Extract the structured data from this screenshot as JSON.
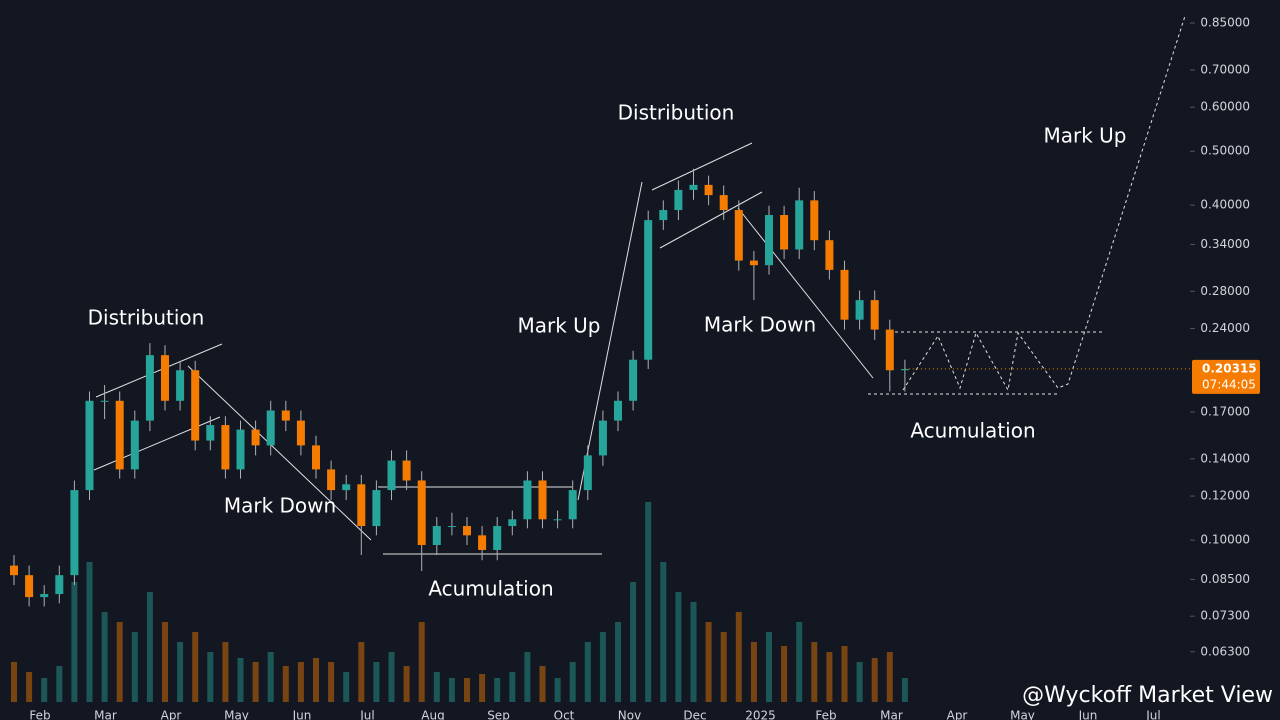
{
  "chart_data": {
    "type": "candlestick",
    "log_scale": true,
    "up_color": "#26a69a",
    "down_color": "#f57c00",
    "ylim": [
      0.0475,
      0.935
    ],
    "yticks": [
      {
        "value": 0.85,
        "label": "0.85000"
      },
      {
        "value": 0.7,
        "label": "0.70000"
      },
      {
        "value": 0.6,
        "label": "0.60000"
      },
      {
        "value": 0.5,
        "label": "0.50000"
      },
      {
        "value": 0.4,
        "label": "0.40000"
      },
      {
        "value": 0.34,
        "label": "0.34000"
      },
      {
        "value": 0.28,
        "label": "0.28000"
      },
      {
        "value": 0.24,
        "label": "0.24000"
      },
      {
        "value": 0.17,
        "label": "0.17000"
      },
      {
        "value": 0.14,
        "label": "0.14000"
      },
      {
        "value": 0.12,
        "label": "0.12000"
      },
      {
        "value": 0.1,
        "label": "0.10000"
      },
      {
        "value": 0.085,
        "label": "0.08500"
      },
      {
        "value": 0.073,
        "label": "0.07300"
      },
      {
        "value": 0.063,
        "label": "0.06300"
      }
    ],
    "x_labels": [
      "Feb",
      "Mar",
      "Apr",
      "May",
      "Jun",
      "Jul",
      "Aug",
      "Sep",
      "Oct",
      "Nov",
      "Dec",
      "2025",
      "Feb",
      "Mar",
      "Apr",
      "May",
      "Jun",
      "Jul"
    ],
    "candles": [
      [
        0.09,
        0.094,
        0.083,
        0.0865
      ],
      [
        0.0865,
        0.09,
        0.076,
        0.079
      ],
      [
        0.079,
        0.083,
        0.076,
        0.08
      ],
      [
        0.08,
        0.09,
        0.077,
        0.0865
      ],
      [
        0.0865,
        0.128,
        0.083,
        0.123
      ],
      [
        0.123,
        0.185,
        0.118,
        0.178
      ],
      [
        0.178,
        0.19,
        0.165,
        0.178
      ],
      [
        0.178,
        0.185,
        0.129,
        0.134
      ],
      [
        0.134,
        0.171,
        0.129,
        0.164
      ],
      [
        0.164,
        0.226,
        0.157,
        0.215
      ],
      [
        0.215,
        0.224,
        0.171,
        0.178
      ],
      [
        0.178,
        0.21,
        0.171,
        0.202
      ],
      [
        0.202,
        0.21,
        0.145,
        0.151
      ],
      [
        0.151,
        0.167,
        0.145,
        0.161
      ],
      [
        0.161,
        0.167,
        0.129,
        0.134
      ],
      [
        0.134,
        0.164,
        0.129,
        0.158
      ],
      [
        0.158,
        0.164,
        0.142,
        0.148
      ],
      [
        0.148,
        0.178,
        0.142,
        0.171
      ],
      [
        0.171,
        0.178,
        0.157,
        0.164
      ],
      [
        0.164,
        0.171,
        0.142,
        0.148
      ],
      [
        0.148,
        0.154,
        0.129,
        0.134
      ],
      [
        0.134,
        0.139,
        0.118,
        0.123
      ],
      [
        0.123,
        0.131,
        0.118,
        0.126
      ],
      [
        0.126,
        0.131,
        0.094,
        0.106
      ],
      [
        0.106,
        0.128,
        0.102,
        0.123
      ],
      [
        0.123,
        0.145,
        0.118,
        0.139
      ],
      [
        0.139,
        0.145,
        0.123,
        0.128
      ],
      [
        0.128,
        0.133,
        0.088,
        0.098
      ],
      [
        0.098,
        0.11,
        0.094,
        0.106
      ],
      [
        0.106,
        0.112,
        0.102,
        0.106
      ],
      [
        0.106,
        0.11,
        0.098,
        0.102
      ],
      [
        0.102,
        0.106,
        0.092,
        0.096
      ],
      [
        0.096,
        0.11,
        0.092,
        0.106
      ],
      [
        0.106,
        0.113,
        0.102,
        0.109
      ],
      [
        0.109,
        0.133,
        0.105,
        0.128
      ],
      [
        0.128,
        0.133,
        0.105,
        0.109
      ],
      [
        0.109,
        0.113,
        0.105,
        0.109
      ],
      [
        0.109,
        0.128,
        0.105,
        0.123
      ],
      [
        0.123,
        0.148,
        0.118,
        0.142
      ],
      [
        0.142,
        0.171,
        0.136,
        0.164
      ],
      [
        0.164,
        0.185,
        0.157,
        0.178
      ],
      [
        0.178,
        0.219,
        0.171,
        0.211
      ],
      [
        0.211,
        0.391,
        0.203,
        0.376
      ],
      [
        0.376,
        0.408,
        0.361,
        0.392
      ],
      [
        0.392,
        0.443,
        0.376,
        0.426
      ],
      [
        0.426,
        0.465,
        0.409,
        0.435
      ],
      [
        0.435,
        0.452,
        0.4,
        0.417
      ],
      [
        0.417,
        0.434,
        0.376,
        0.392
      ],
      [
        0.392,
        0.408,
        0.305,
        0.318
      ],
      [
        0.318,
        0.331,
        0.27,
        0.312
      ],
      [
        0.312,
        0.399,
        0.3,
        0.384
      ],
      [
        0.384,
        0.399,
        0.32,
        0.333
      ],
      [
        0.333,
        0.43,
        0.32,
        0.408
      ],
      [
        0.408,
        0.424,
        0.332,
        0.346
      ],
      [
        0.346,
        0.36,
        0.294,
        0.306
      ],
      [
        0.306,
        0.318,
        0.239,
        0.249
      ],
      [
        0.249,
        0.281,
        0.239,
        0.27
      ],
      [
        0.27,
        0.281,
        0.229,
        0.239
      ],
      [
        0.239,
        0.249,
        0.185,
        0.202
      ],
      [
        0.202,
        0.211,
        0.185,
        0.203
      ]
    ],
    "volume": [
      20,
      15,
      12,
      18,
      60,
      70,
      45,
      40,
      35,
      55,
      40,
      30,
      35,
      25,
      30,
      22,
      20,
      25,
      18,
      20,
      22,
      20,
      15,
      30,
      20,
      25,
      18,
      40,
      15,
      12,
      12,
      14,
      12,
      15,
      25,
      18,
      12,
      20,
      30,
      35,
      40,
      60,
      100,
      70,
      55,
      50,
      40,
      35,
      45,
      30,
      35,
      28,
      40,
      30,
      25,
      28,
      20,
      22,
      25,
      12
    ],
    "last_price": {
      "value": 0.20315,
      "label": "0.20315"
    },
    "countdown": "07:44:05",
    "annotations": [
      "Distribution",
      "Mark Down",
      "Acumulation",
      "Mark Up",
      "Distribution",
      "Mark Down",
      "Acumulation",
      "Mark Up"
    ],
    "watermark": "@Wyckoff Market View"
  }
}
